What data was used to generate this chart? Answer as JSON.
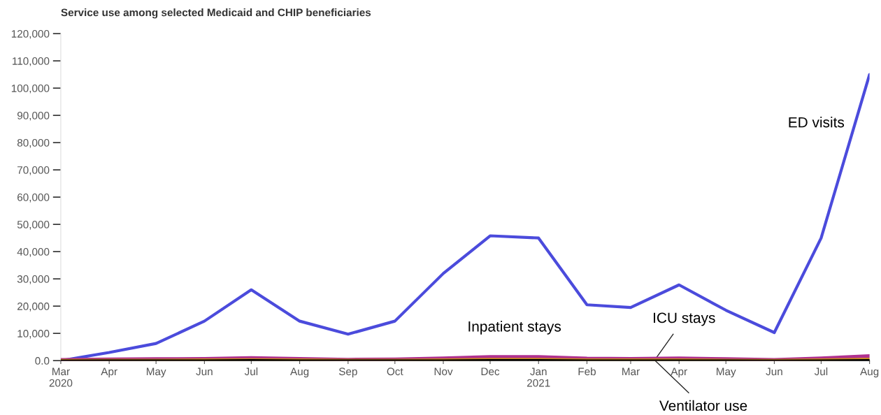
{
  "chart_data": {
    "type": "line",
    "title": "Service use among selected Medicaid and CHIP beneficiaries",
    "x": [
      "2020-03",
      "2020-04",
      "2020-05",
      "2020-06",
      "2020-07",
      "2020-08",
      "2020-09",
      "2020-10",
      "2020-11",
      "2020-12",
      "2021-01",
      "2021-02",
      "2021-03",
      "2021-04",
      "2021-05",
      "2021-06",
      "2021-07",
      "2021-08"
    ],
    "series": [
      {
        "name": "ED visits",
        "color": "#4b4bdc",
        "values": [
          0,
          3000,
          6300,
          14500,
          26000,
          14500,
          9700,
          14500,
          32000,
          45800,
          45000,
          20500,
          19500,
          27800,
          18500,
          10300,
          45000,
          105000
        ]
      },
      {
        "name": "Inpatient stays",
        "color": "#b0308f",
        "values": [
          300,
          500,
          600,
          700,
          1000,
          700,
          400,
          500,
          900,
          1400,
          1400,
          800,
          700,
          900,
          600,
          300,
          900,
          1700
        ]
      },
      {
        "name": "ICU stays",
        "color": "#c8861f",
        "values": [
          100,
          200,
          200,
          300,
          400,
          300,
          200,
          200,
          300,
          500,
          500,
          300,
          300,
          300,
          200,
          100,
          300,
          600
        ]
      },
      {
        "name": "Ventilator use",
        "color": "#000000",
        "values": [
          0,
          100,
          100,
          100,
          200,
          100,
          100,
          100,
          100,
          200,
          200,
          100,
          100,
          100,
          100,
          0,
          100,
          200
        ]
      }
    ],
    "ylim": [
      0,
      120000
    ],
    "yticks": [
      {
        "value": 0,
        "label": "0.0"
      },
      {
        "value": 10000,
        "label": "10,000"
      },
      {
        "value": 20000,
        "label": "20,000"
      },
      {
        "value": 30000,
        "label": "30,000"
      },
      {
        "value": 40000,
        "label": "40,000"
      },
      {
        "value": 50000,
        "label": "50,000"
      },
      {
        "value": 60000,
        "label": "60,000"
      },
      {
        "value": 70000,
        "label": "70,000"
      },
      {
        "value": 80000,
        "label": "80,000"
      },
      {
        "value": 90000,
        "label": "90,000"
      },
      {
        "value": 100000,
        "label": "100,000"
      },
      {
        "value": 110000,
        "label": "110,000"
      },
      {
        "value": 120000,
        "label": "120,000"
      }
    ],
    "xlim": [
      "2020-03",
      "2021-08"
    ],
    "xticks": [
      {
        "value": "2020-03",
        "label": "Mar\n2020"
      },
      {
        "value": "2020-04",
        "label": "Apr"
      },
      {
        "value": "2020-05",
        "label": "May"
      },
      {
        "value": "2020-06",
        "label": "Jun"
      },
      {
        "value": "2020-07",
        "label": "Jul"
      },
      {
        "value": "2020-08",
        "label": "Aug"
      },
      {
        "value": "2020-09",
        "label": "Sep"
      },
      {
        "value": "2020-10",
        "label": "Oct"
      },
      {
        "value": "2020-11",
        "label": "Nov"
      },
      {
        "value": "2020-12",
        "label": "Dec"
      },
      {
        "value": "2021-01",
        "label": "Jan\n2021"
      },
      {
        "value": "2021-02",
        "label": "Feb"
      },
      {
        "value": "2021-03",
        "label": "Mar"
      },
      {
        "value": "2021-04",
        "label": "Apr"
      },
      {
        "value": "2021-05",
        "label": "May"
      },
      {
        "value": "2021-06",
        "label": "Jun"
      },
      {
        "value": "2021-07",
        "label": "Jul"
      },
      {
        "value": "2021-08",
        "label": "Aug"
      }
    ],
    "grid": false,
    "legend": false,
    "marker": "none",
    "line_style": "solid"
  }
}
